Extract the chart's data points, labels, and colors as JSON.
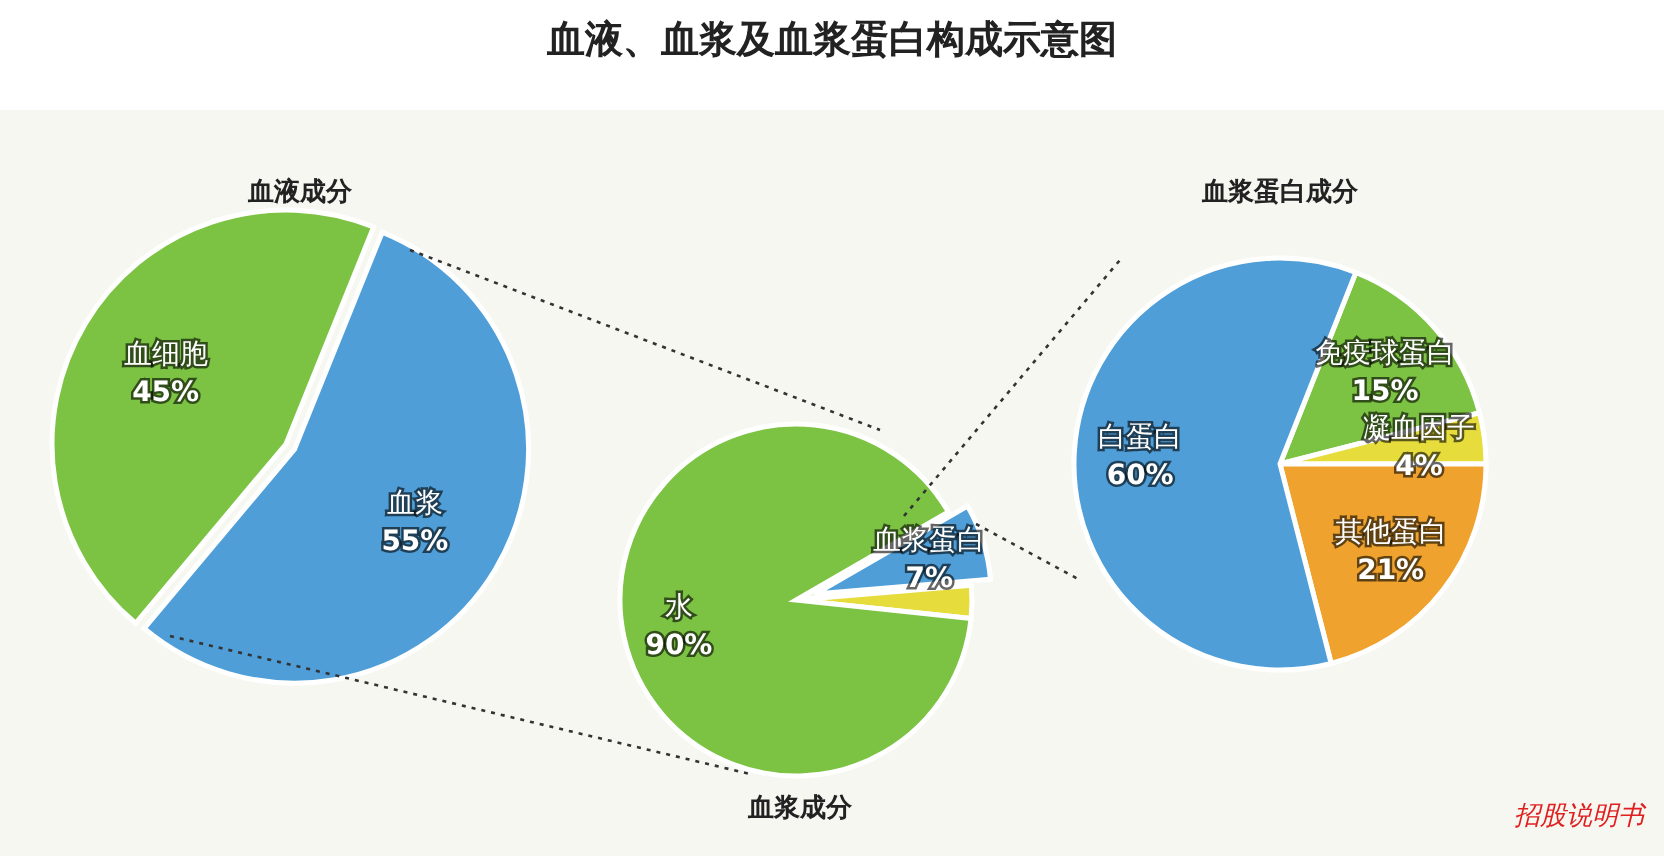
{
  "chart_data": [
    {
      "type": "pie",
      "title": "血液、血浆及血浆蛋白构成示意图",
      "subtitle": "血液成分",
      "categories": [
        "血浆",
        "血细胞"
      ],
      "values": [
        55,
        45
      ],
      "colors": [
        "#4f9ed8",
        "#7cc243"
      ],
      "value_labels": [
        "55%",
        "45%"
      ]
    },
    {
      "type": "pie",
      "subtitle": "血浆成分",
      "categories": [
        "血浆蛋白",
        null,
        "水"
      ],
      "values": [
        7,
        3,
        90
      ],
      "colors": [
        "#4f9ed8",
        "#e6dc3c",
        "#7cc243"
      ],
      "value_labels": [
        "7%",
        null,
        "90%"
      ]
    },
    {
      "type": "pie",
      "subtitle": "血浆蛋白成分",
      "categories": [
        "免疫球蛋白",
        "凝血因子",
        "其他蛋白",
        "白蛋白"
      ],
      "values": [
        15,
        4,
        21,
        60
      ],
      "colors": [
        "#7cc243",
        "#e6dc3c",
        "#f0a22e",
        "#4f9ed8"
      ],
      "value_labels": [
        "15%",
        "4%",
        "21%",
        "60%"
      ],
      "annotations": [
        "招股说明书"
      ]
    }
  ]
}
